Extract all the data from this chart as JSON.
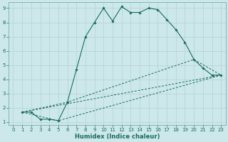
{
  "xlabel": "Humidex (Indice chaleur)",
  "bg_color": "#cce8ea",
  "line_color": "#1a6b60",
  "grid_color": "#b8d4d6",
  "xlim": [
    -0.5,
    23.5
  ],
  "ylim": [
    0.8,
    9.4
  ],
  "xticks": [
    0,
    1,
    2,
    3,
    4,
    5,
    6,
    7,
    8,
    9,
    10,
    11,
    12,
    13,
    14,
    15,
    16,
    17,
    18,
    19,
    20,
    21,
    22,
    23
  ],
  "yticks": [
    1,
    2,
    3,
    4,
    5,
    6,
    7,
    8,
    9
  ],
  "series_main": {
    "x": [
      1,
      2,
      3,
      4,
      5,
      6,
      7,
      8,
      9,
      10,
      11,
      12,
      13,
      14,
      15,
      16,
      17,
      18,
      19,
      20,
      21,
      22,
      23
    ],
    "y": [
      1.7,
      1.7,
      1.2,
      1.2,
      1.1,
      2.4,
      4.7,
      7.0,
      8.0,
      9.0,
      8.1,
      9.1,
      8.7,
      8.7,
      9.0,
      8.9,
      8.2,
      7.5,
      6.6,
      5.4,
      4.8,
      4.3,
      4.3
    ]
  },
  "series_line1": {
    "x": [
      1,
      5,
      23
    ],
    "y": [
      1.7,
      1.1,
      4.3
    ]
  },
  "series_line2": {
    "x": [
      1,
      23
    ],
    "y": [
      1.7,
      4.3
    ]
  },
  "series_line3": {
    "x": [
      1,
      6,
      20,
      23
    ],
    "y": [
      1.7,
      2.4,
      5.4,
      4.3
    ]
  }
}
